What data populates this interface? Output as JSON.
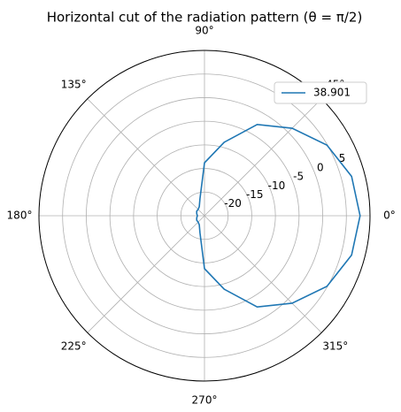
{
  "chart_data": {
    "type": "polar",
    "title": "Horizontal cut of the radiation pattern (θ = π/2)",
    "x": [
      0,
      15,
      30,
      45,
      60,
      75,
      90,
      105,
      120,
      135,
      150,
      165,
      180,
      195,
      210,
      225,
      240,
      255,
      270,
      285,
      300,
      315,
      330,
      345
    ],
    "series": [
      {
        "name": "38.901",
        "color": "#1f77b4",
        "values": [
          7.9,
          7.2,
          4.9,
          1.2,
          -2.7,
          -8.9,
          -13.8,
          -21.3,
          -22.8,
          -23.1,
          -23.1,
          -23.3,
          -23.5,
          -23.3,
          -23.1,
          -23.1,
          -22.8,
          -21.3,
          -13.8,
          -8.9,
          -2.7,
          1.2,
          4.9,
          7.2
        ]
      }
    ],
    "ylim": [
      -25,
      10
    ],
    "yticks": [
      -20,
      -15,
      -10,
      -5,
      0,
      5
    ],
    "xticks": [
      {
        "value": 0,
        "label": "0°"
      },
      {
        "value": 45,
        "label": "45°"
      },
      {
        "value": 90,
        "label": "90°"
      },
      {
        "value": 135,
        "label": "135°"
      },
      {
        "value": 180,
        "label": "180°"
      },
      {
        "value": 225,
        "label": "225°"
      },
      {
        "value": 270,
        "label": "270°"
      },
      {
        "value": 315,
        "label": "315°"
      }
    ],
    "grid": true,
    "legend": "upper right"
  }
}
